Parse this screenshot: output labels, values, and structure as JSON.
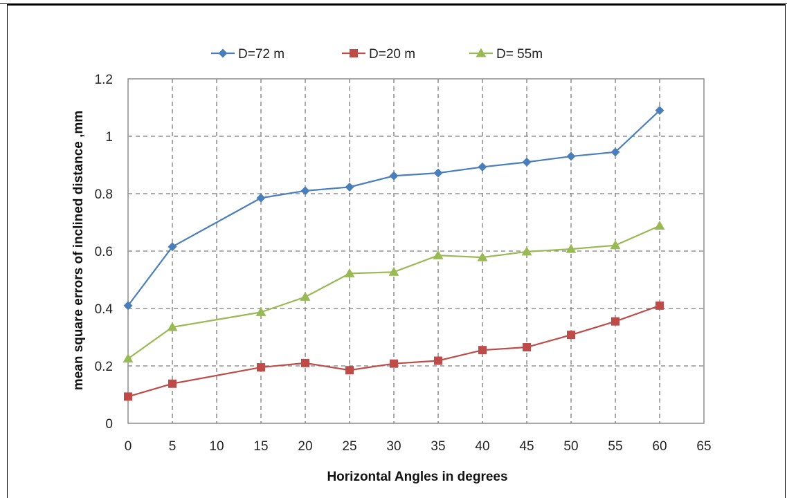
{
  "chart_data": {
    "type": "line",
    "xlabel": "Horizontal  Angles in degrees",
    "ylabel": "mean square errors of inclined distance ,mm",
    "xlim": [
      0,
      65
    ],
    "ylim": [
      0,
      1.2
    ],
    "x_ticks": [
      0,
      5,
      10,
      15,
      20,
      25,
      30,
      35,
      40,
      45,
      50,
      55,
      60,
      65
    ],
    "y_ticks": [
      "0",
      "0.2",
      "0.4",
      "0.6",
      "0.8",
      "1",
      "1.2"
    ],
    "grid": true,
    "legend_position": "top",
    "x": [
      0,
      5,
      15,
      20,
      25,
      30,
      35,
      40,
      45,
      50,
      55,
      60
    ],
    "series": [
      {
        "name": "D=72 m",
        "color": "#4a7ebb",
        "marker": "diamond",
        "values": [
          0.41,
          0.615,
          0.785,
          0.81,
          0.823,
          0.862,
          0.872,
          0.893,
          0.91,
          0.93,
          0.945,
          1.09
        ]
      },
      {
        "name": "D=20 m",
        "color": "#be4b48",
        "marker": "square",
        "values": [
          0.093,
          0.138,
          0.195,
          0.21,
          0.185,
          0.208,
          0.218,
          0.255,
          0.265,
          0.308,
          0.355,
          0.41
        ]
      },
      {
        "name": "D= 55m",
        "color": "#98b954",
        "marker": "triangle",
        "values": [
          0.225,
          0.335,
          0.387,
          0.44,
          0.522,
          0.527,
          0.585,
          0.578,
          0.598,
          0.607,
          0.62,
          0.688
        ]
      }
    ]
  }
}
